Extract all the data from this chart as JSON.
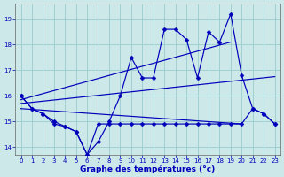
{
  "title": "Graphe des températures (°c)",
  "bg_color": "#cce8e8",
  "grid_color": "#99cccc",
  "line_color": "#0000bb",
  "xlim": [
    -0.5,
    23.5
  ],
  "ylim": [
    13.7,
    19.6
  ],
  "xticks": [
    0,
    1,
    2,
    3,
    4,
    5,
    6,
    7,
    8,
    9,
    10,
    11,
    12,
    13,
    14,
    15,
    16,
    17,
    18,
    19,
    20,
    21,
    22,
    23
  ],
  "yticks": [
    14,
    15,
    16,
    17,
    18,
    19
  ],
  "upper_x": [
    0,
    1,
    2,
    3,
    4,
    5,
    6,
    7,
    8,
    9,
    10,
    11,
    12,
    13,
    14,
    15,
    16,
    17,
    18,
    19,
    20,
    21,
    22,
    23
  ],
  "upper_y": [
    16.0,
    15.5,
    15.3,
    15.0,
    14.8,
    14.6,
    13.7,
    14.2,
    15.0,
    16.0,
    17.5,
    16.7,
    16.7,
    18.6,
    18.6,
    18.2,
    16.7,
    18.5,
    18.1,
    19.2,
    16.8,
    15.5,
    15.3,
    14.9
  ],
  "lower_x": [
    0,
    1,
    2,
    3,
    4,
    5,
    6,
    7,
    8,
    9,
    10,
    11,
    12,
    13,
    14,
    15,
    16,
    17,
    18,
    19,
    20,
    21,
    22,
    23
  ],
  "lower_y": [
    16.0,
    15.5,
    15.3,
    14.9,
    14.8,
    14.6,
    13.7,
    14.9,
    14.9,
    14.9,
    14.9,
    14.9,
    14.9,
    14.9,
    14.9,
    14.9,
    14.9,
    14.9,
    14.9,
    14.9,
    14.9,
    15.5,
    15.3,
    14.9
  ],
  "trend1_x": [
    0,
    19
  ],
  "trend1_y": [
    15.85,
    18.1
  ],
  "trend2_x": [
    0,
    23
  ],
  "trend2_y": [
    15.7,
    16.75
  ],
  "trend3_x": [
    0,
    20
  ],
  "trend3_y": [
    15.5,
    14.9
  ]
}
